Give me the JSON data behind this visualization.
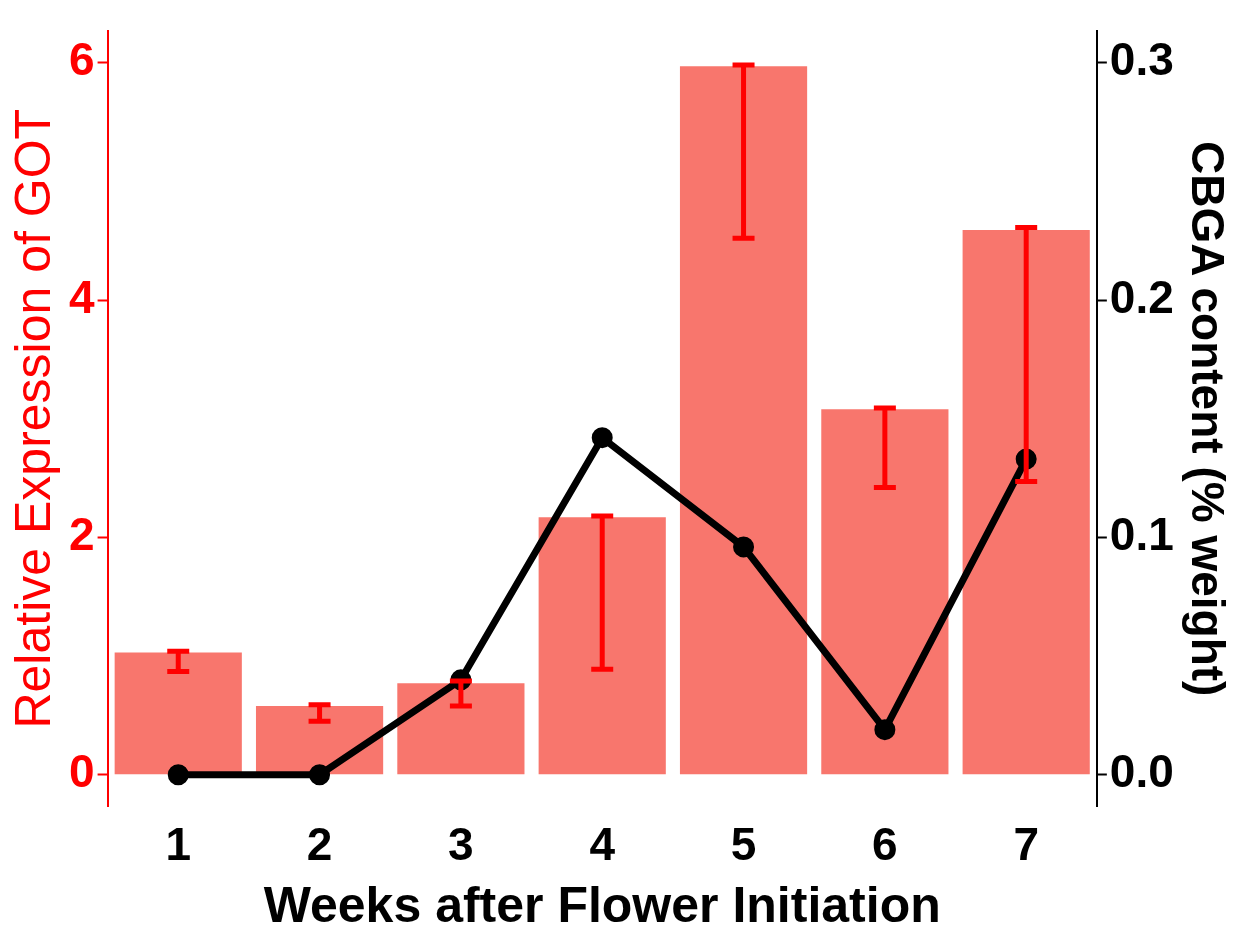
{
  "chart_data": {
    "type": "bar",
    "xlabel": "Weeks after Flower Initiation",
    "ylabel": "Relative Expression of GOT",
    "y2label": "CBGA content (% weight)",
    "categories": [
      "1",
      "2",
      "3",
      "4",
      "5",
      "6",
      "7"
    ],
    "series": [
      {
        "color": "#f8766d",
        "values": [
          1.03,
          0.58,
          0.77,
          2.17,
          5.97,
          3.08,
          4.59
        ],
        "errors": [
          [
            0.87,
            1.04
          ],
          [
            0.45,
            0.59
          ],
          [
            0.58,
            0.79
          ],
          [
            0.89,
            2.18
          ],
          [
            4.52,
            5.98
          ],
          [
            2.42,
            3.09
          ],
          [
            2.47,
            4.61
          ]
        ]
      },
      {
        "type": "line",
        "axis": "y2",
        "color": "#000000",
        "values": [
          0,
          0,
          0.04,
          0.142,
          0.096,
          0.019,
          0.133
        ]
      }
    ],
    "ylim": [
      -0.27,
      6.27
    ],
    "yticks": [
      0,
      2,
      4,
      6
    ],
    "y2lim": [
      -0.0135,
      0.3135
    ],
    "y2ticks": [
      {
        "value": 0,
        "label": "0.0"
      },
      {
        "value": 0.1,
        "label": "0.1"
      },
      {
        "value": 0.2,
        "label": "0.2"
      },
      {
        "value": 0.3,
        "label": "0.3"
      }
    ],
    "grid": false,
    "legend": false,
    "marker": "circle",
    "line_style": "solid"
  }
}
